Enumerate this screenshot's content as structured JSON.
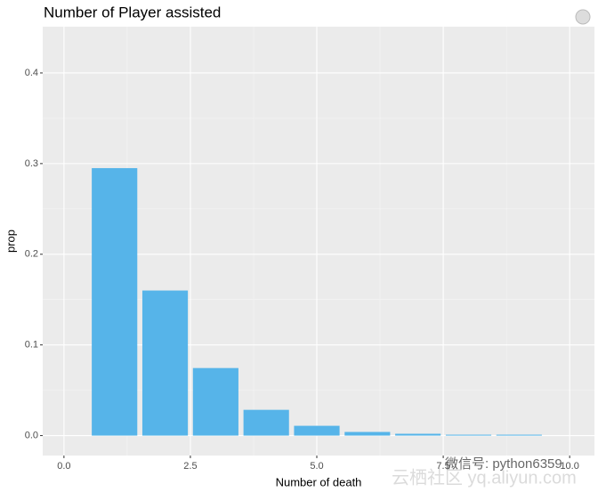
{
  "chart_data": {
    "type": "bar",
    "title": "Number of Player assisted",
    "x_label": "Number of death",
    "y_label": "prop",
    "x": [
      1,
      2,
      3,
      4,
      5,
      6,
      7,
      8,
      9
    ],
    "values": [
      0.295,
      0.16,
      0.0745,
      0.0284,
      0.0108,
      0.004,
      0.002,
      0.001,
      0.001
    ],
    "color": "#56B4E9",
    "xlim": [
      -0.42,
      10.49
    ],
    "xticks": [
      {
        "value": 0,
        "label": "0.0"
      },
      {
        "value": 2.5,
        "label": "2.5"
      },
      {
        "value": 5,
        "label": "5.0"
      },
      {
        "value": 7.5,
        "label": "7.5"
      },
      {
        "value": 10,
        "label": "10.0"
      }
    ],
    "ylim": [
      -0.022,
      0.451
    ],
    "yticks": [
      {
        "value": 0,
        "label": "0.0"
      },
      {
        "value": 0.1,
        "label": "0.1"
      },
      {
        "value": 0.2,
        "label": "0.2"
      },
      {
        "value": 0.3,
        "label": "0.3"
      },
      {
        "value": 0.4,
        "label": "0.4"
      }
    ],
    "grid": true,
    "watermark": [
      "微信号: python6359",
      "云栖社区 yq.aliyun.com"
    ]
  }
}
